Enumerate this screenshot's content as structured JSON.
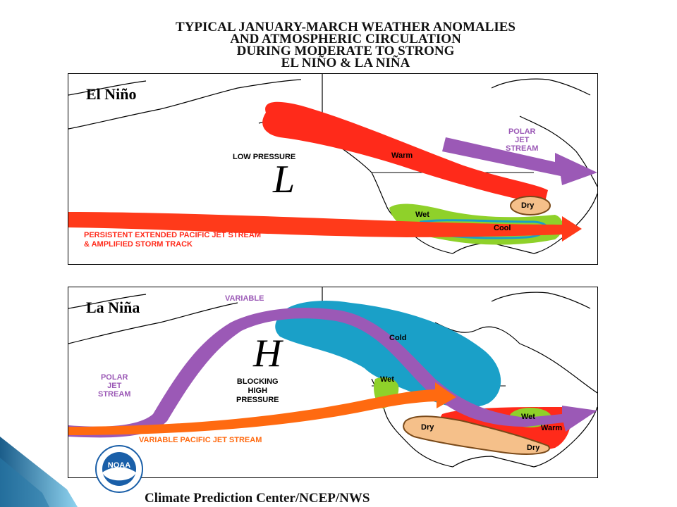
{
  "title": {
    "lines": [
      "TYPICAL JANUARY-MARCH WEATHER ANOMALIES",
      "AND ATMOSPHERIC CIRCULATION",
      "DURING MODERATE TO STRONG",
      "EL NIÑO & LA NIÑA"
    ]
  },
  "elnino": {
    "title": "El Niño",
    "low_pressure_label": "LOW PRESSURE",
    "pressure_symbol": "L",
    "polar_jet_lines": [
      "POLAR",
      "JET",
      "STREAM"
    ],
    "warm_label": "Warm",
    "dry_label": "Dry",
    "wet_label": "Wet",
    "cool_label": "Cool",
    "pacific_jet_lines": [
      "PERSISTENT EXTENDED PACIFIC JET STREAM",
      "& AMPLIFIED STORM TRACK"
    ]
  },
  "lanina": {
    "title": "La Niña",
    "variable_label": "VARIABLE",
    "cold_label": "Cold",
    "pressure_symbol": "H",
    "blocking_lines": [
      "BLOCKING",
      "HIGH",
      "PRESSURE"
    ],
    "polar_jet_lines": [
      "POLAR",
      "JET",
      "STREAM"
    ],
    "wet_west_label": "Wet",
    "wet_east_label": "Wet",
    "warm_label": "Warm",
    "dry_west_label": "Dry",
    "dry_east_label": "Dry",
    "pacific_jet_label": "VARIABLE PACIFIC JET STREAM"
  },
  "logo": {
    "text": "NOAA",
    "ring_text": "NATIONAL OCEANIC AND ATMOSPHERIC ADMINISTRATION • U.S. DEPARTMENT OF COMMERCE"
  },
  "credit": "Climate Prediction Center/NCEP/NWS",
  "colors": {
    "jet_red": "#ff2a1a",
    "polar_purple": "#9b59b6",
    "pacific_orange": "#ff6a10",
    "cold_blue": "#1aa0c8",
    "wet_green": "#8fd12a",
    "dry_tan": "#f5c08a",
    "noaa_blue": "#1a5fa8"
  }
}
